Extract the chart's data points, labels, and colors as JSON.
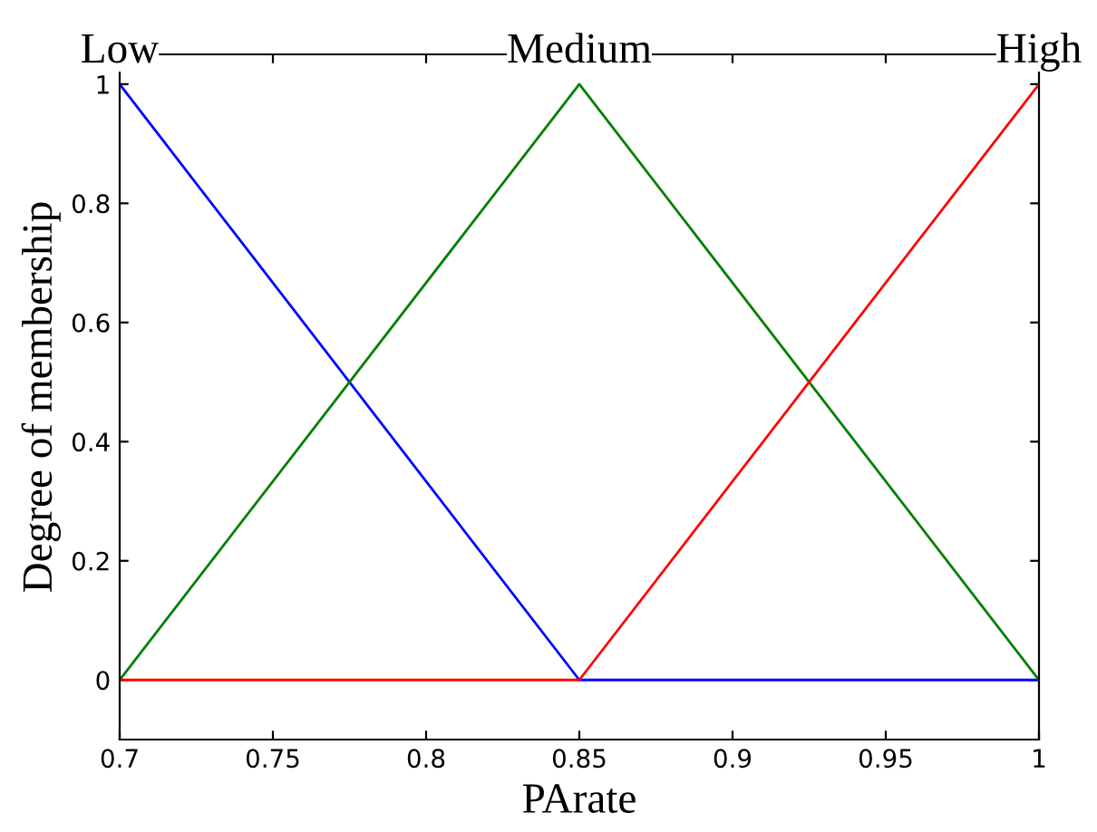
{
  "chart_data": {
    "type": "line",
    "xlabel": "PArate",
    "ylabel": "Degree of membership",
    "xlim": [
      0.7,
      1
    ],
    "xticks": [
      0.7,
      0.75,
      0.8,
      0.85,
      0.9,
      0.95,
      1
    ],
    "ylim": [
      -0.1,
      1.05
    ],
    "yticks": [
      0,
      0.2,
      0.4,
      0.6,
      0.8,
      1
    ],
    "grid": false,
    "legend": false,
    "marker": "none",
    "line_style": "solid",
    "series": [
      {
        "name": "Low",
        "color": "#0000ff",
        "x": [
          0.7,
          0.85,
          1
        ],
        "values": [
          1,
          0,
          0
        ]
      },
      {
        "name": "Medium",
        "color": "#008000",
        "x": [
          0.7,
          0.85,
          1
        ],
        "values": [
          0,
          1,
          0
        ]
      },
      {
        "name": "High",
        "color": "#ff0000",
        "x": [
          0.7,
          0.85,
          1
        ],
        "values": [
          0,
          0,
          1
        ]
      }
    ]
  }
}
